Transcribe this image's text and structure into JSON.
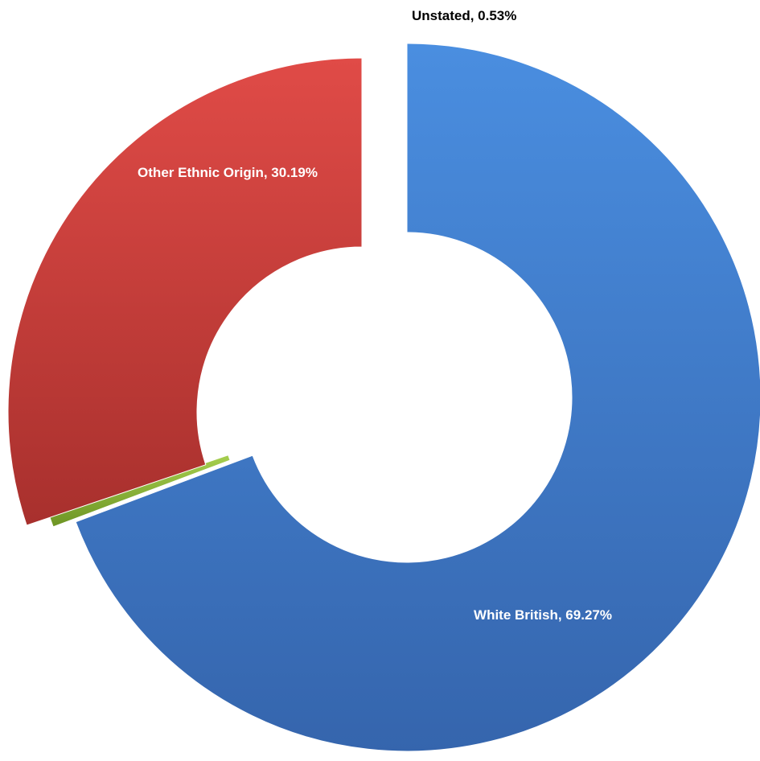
{
  "chart_data": {
    "type": "pie",
    "variant": "doughnut",
    "title": "",
    "legend": "none",
    "slices": [
      {
        "name": "White British",
        "value": 69.27,
        "label": "White British, 69.27%",
        "color": "#3f7fd0",
        "label_color": "#ffffff"
      },
      {
        "name": "Unstated",
        "value": 0.53,
        "label": "Unstated, 0.53%",
        "color": "#8bb43a",
        "label_color": "#000000"
      },
      {
        "name": "Other Ethnic Origin",
        "value": 30.19,
        "label": "Other Ethnic Origin, 30.19%",
        "color": "#c8403c",
        "label_color": "#ffffff"
      }
    ]
  }
}
